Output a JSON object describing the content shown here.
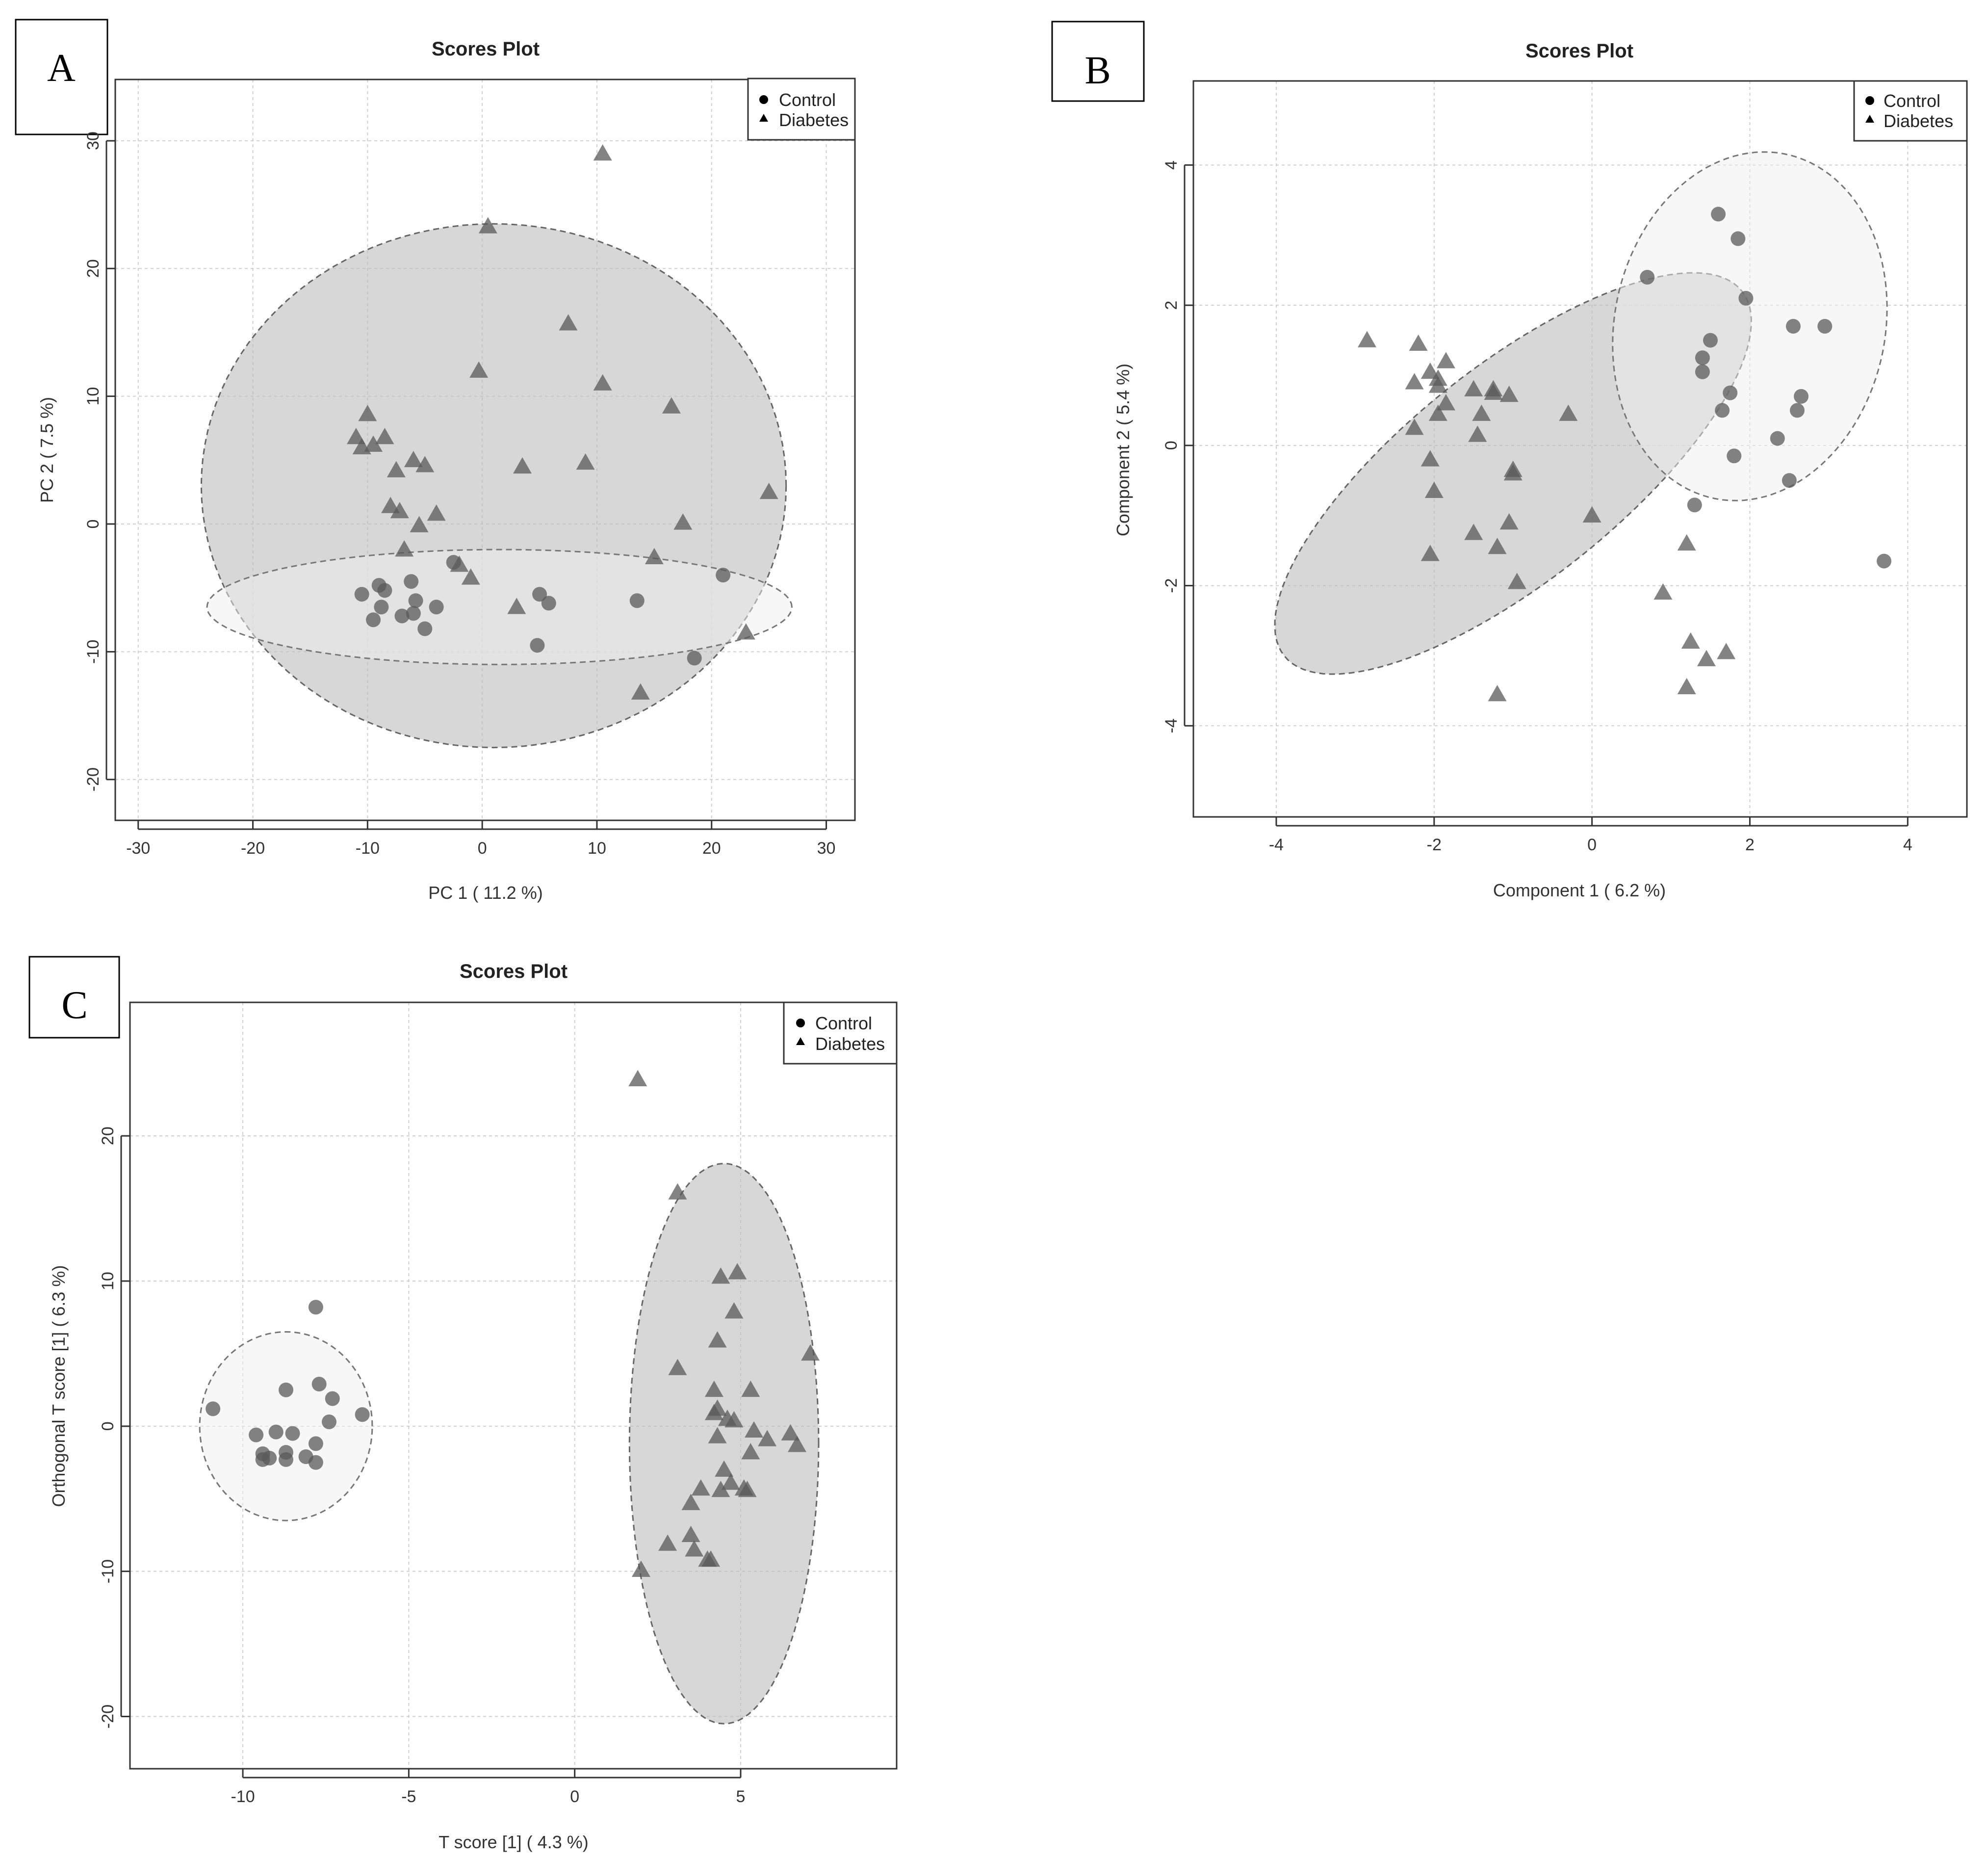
{
  "colors": {
    "point": "#5a5a5a",
    "ellipse_dark": "#bdbdbd",
    "ellipse_light": "#efefef"
  },
  "chart_data": [
    {
      "panel": "A",
      "type": "scatter",
      "title": "Scores Plot",
      "xlabel": "PC 1 ( 11.2 %)",
      "ylabel": "PC 2 ( 7.5 %)",
      "xlim": [
        -32,
        32.5
      ],
      "ylim": [
        -23.2,
        34.8
      ],
      "xticks": [
        -30,
        -20,
        -10,
        0,
        10,
        20,
        30
      ],
      "yticks": [
        -20,
        -10,
        0,
        10,
        20,
        30
      ],
      "xtick_labels": [
        "-30",
        "-20",
        "-10",
        "0",
        "10",
        "20",
        "30"
      ],
      "ytick_labels": [
        "-20",
        "-10",
        "0",
        "10",
        "20",
        "30"
      ],
      "grid": true,
      "legend": {
        "position": "top-right",
        "entries": [
          {
            "label": "Control",
            "marker": "circle"
          },
          {
            "label": "Diabetes",
            "marker": "triangle"
          }
        ]
      },
      "ellipses": [
        {
          "group": "Diabetes",
          "cx": 1,
          "cy": 3,
          "rx": 25.5,
          "ry": 20.5,
          "angle": 0,
          "style": "dark"
        },
        {
          "group": "Control",
          "cx": 1.5,
          "cy": -6.5,
          "rx": 25.5,
          "ry": 4.5,
          "angle": 0,
          "style": "light"
        }
      ],
      "series": [
        {
          "name": "Control",
          "marker": "circle",
          "points": [
            [
              -10.5,
              -5.5
            ],
            [
              -9,
              -4.8
            ],
            [
              -8.5,
              -5.2
            ],
            [
              -9.5,
              -7.5
            ],
            [
              -8.8,
              -6.5
            ],
            [
              -7,
              -7.2
            ],
            [
              -6,
              -7
            ],
            [
              -5,
              -8.2
            ],
            [
              -4,
              -6.5
            ],
            [
              -5.8,
              -6
            ],
            [
              -6.2,
              -4.5
            ],
            [
              -2.5,
              -3
            ],
            [
              5,
              -5.5
            ],
            [
              5.8,
              -6.2
            ],
            [
              4.8,
              -9.5
            ],
            [
              13.5,
              -6
            ],
            [
              21,
              -4
            ],
            [
              18.5,
              -10.5
            ]
          ]
        },
        {
          "name": "Diabetes",
          "marker": "triangle",
          "points": [
            [
              10.5,
              29
            ],
            [
              0.5,
              23.3
            ],
            [
              7.5,
              15.7
            ],
            [
              -0.3,
              12
            ],
            [
              10.5,
              11
            ],
            [
              16.5,
              9.2
            ],
            [
              -10,
              8.6
            ],
            [
              -11,
              6.8
            ],
            [
              -10.5,
              6
            ],
            [
              -9.5,
              6.2
            ],
            [
              -8.5,
              6.8
            ],
            [
              -6,
              5
            ],
            [
              -5,
              4.6
            ],
            [
              -7.5,
              4.2
            ],
            [
              3.5,
              4.5
            ],
            [
              9,
              4.8
            ],
            [
              25,
              2.5
            ],
            [
              -8,
              1.4
            ],
            [
              -7.2,
              1
            ],
            [
              -4,
              0.8
            ],
            [
              -5.5,
              -0.1
            ],
            [
              17.5,
              0.1
            ],
            [
              -6.8,
              -2
            ],
            [
              -2,
              -3.2
            ],
            [
              -1,
              -4.2
            ],
            [
              15,
              -2.6
            ],
            [
              3,
              -6.5
            ],
            [
              23,
              -8.5
            ],
            [
              13.8,
              -13.2
            ]
          ]
        }
      ]
    },
    {
      "panel": "B",
      "type": "scatter",
      "title": "Scores Plot",
      "xlabel": "Component 1 ( 6.2 %)",
      "ylabel": "Component 2 ( 5.4 %)",
      "xlim": [
        -5.05,
        4.75
      ],
      "ylim": [
        -5.3,
        5.2
      ],
      "xticks": [
        -4,
        -2,
        0,
        2,
        4
      ],
      "yticks": [
        -4,
        -2,
        0,
        2,
        4
      ],
      "xtick_labels": [
        "-4",
        "-2",
        "0",
        "2",
        "4"
      ],
      "ytick_labels": [
        "-4",
        "-2",
        "0",
        "2",
        "4"
      ],
      "grid": true,
      "legend": {
        "position": "top-right",
        "entries": [
          {
            "label": "Control",
            "marker": "circle"
          },
          {
            "label": "Diabetes",
            "marker": "triangle"
          }
        ]
      },
      "ellipses": [
        {
          "group": "Diabetes",
          "cx": -1,
          "cy": -0.4,
          "rx": 3.9,
          "ry": 1.45,
          "angle": 43,
          "style": "dark"
        },
        {
          "group": "Control",
          "cx": 2,
          "cy": 1.7,
          "rx": 2.5,
          "ry": 1.72,
          "angle": 82,
          "style": "light"
        }
      ],
      "series": [
        {
          "name": "Control",
          "marker": "circle",
          "points": [
            [
              1.6,
              3.3
            ],
            [
              1.85,
              2.95
            ],
            [
              0.7,
              2.4
            ],
            [
              1.95,
              2.1
            ],
            [
              1.5,
              1.5
            ],
            [
              2.55,
              1.7
            ],
            [
              2.95,
              1.7
            ],
            [
              1.4,
              1.25
            ],
            [
              1.4,
              1.05
            ],
            [
              1.75,
              0.75
            ],
            [
              2.65,
              0.7
            ],
            [
              1.65,
              0.5
            ],
            [
              2.6,
              0.5
            ],
            [
              2.35,
              0.1
            ],
            [
              1.8,
              -0.15
            ],
            [
              2.5,
              -0.5
            ],
            [
              1.3,
              -0.85
            ],
            [
              3.7,
              -1.65
            ]
          ]
        },
        {
          "name": "Diabetes",
          "marker": "triangle",
          "points": [
            [
              -2.85,
              1.5
            ],
            [
              -2.2,
              1.45
            ],
            [
              -1.85,
              1.2
            ],
            [
              -2.05,
              1.05
            ],
            [
              -2.25,
              0.9
            ],
            [
              -1.95,
              0.95
            ],
            [
              -1.95,
              0.85
            ],
            [
              -1.5,
              0.8
            ],
            [
              -1.25,
              0.8
            ],
            [
              -1.25,
              0.75
            ],
            [
              -1.05,
              0.72
            ],
            [
              -1.85,
              0.6
            ],
            [
              -1.4,
              0.45
            ],
            [
              -1.95,
              0.45
            ],
            [
              -0.3,
              0.45
            ],
            [
              -2.25,
              0.25
            ],
            [
              -1.45,
              0.15
            ],
            [
              -2.05,
              -0.2
            ],
            [
              -1.0,
              -0.35
            ],
            [
              -1.0,
              -0.4
            ],
            [
              -2.0,
              -0.65
            ],
            [
              0,
              -1.0
            ],
            [
              -1.05,
              -1.1
            ],
            [
              -1.5,
              -1.25
            ],
            [
              -1.2,
              -1.45
            ],
            [
              -2.05,
              -1.55
            ],
            [
              1.2,
              -1.4
            ],
            [
              -0.95,
              -1.95
            ],
            [
              0.9,
              -2.1
            ],
            [
              1.25,
              -2.8
            ],
            [
              1.7,
              -2.95
            ],
            [
              1.45,
              -3.05
            ],
            [
              1.2,
              -3.45
            ],
            [
              -1.2,
              -3.55
            ]
          ]
        }
      ]
    },
    {
      "panel": "C",
      "type": "scatter",
      "title": "Scores Plot",
      "xlabel": "T score [1] ( 4.3 %)",
      "ylabel": "Orthogonal T score [1] ( 6.3 %)",
      "xlim": [
        -13.4,
        9.7
      ],
      "ylim": [
        -23.6,
        29.2
      ],
      "xticks": [
        -10,
        -5,
        0,
        5
      ],
      "yticks": [
        -20,
        -10,
        0,
        10,
        20
      ],
      "xtick_labels": [
        "-10",
        "-5",
        "0",
        "5"
      ],
      "ytick_labels": [
        "-20",
        "-10",
        "0",
        "10",
        "20"
      ],
      "grid": true,
      "legend": {
        "position": "top-right",
        "entries": [
          {
            "label": "Control",
            "marker": "circle"
          },
          {
            "label": "Diabetes",
            "marker": "triangle"
          }
        ]
      },
      "ellipses": [
        {
          "group": "Control",
          "cx": -8.7,
          "cy": 0,
          "rx": 2.6,
          "ry": 6.5,
          "angle": 0,
          "style": "light"
        },
        {
          "group": "Diabetes",
          "cx": 4.5,
          "cy": -1.2,
          "rx": 2.85,
          "ry": 19.3,
          "angle": 0,
          "style": "dark"
        }
      ],
      "series": [
        {
          "name": "Control",
          "marker": "circle",
          "points": [
            [
              -7.8,
              8.2
            ],
            [
              -10.9,
              1.2
            ],
            [
              -8.7,
              2.5
            ],
            [
              -7.7,
              2.9
            ],
            [
              -7.3,
              1.9
            ],
            [
              -6.4,
              0.8
            ],
            [
              -7.4,
              0.3
            ],
            [
              -9.6,
              -0.6
            ],
            [
              -9.0,
              -0.4
            ],
            [
              -8.5,
              -0.5
            ],
            [
              -7.8,
              -1.2
            ],
            [
              -9.4,
              -1.9
            ],
            [
              -8.7,
              -1.8
            ],
            [
              -9.2,
              -2.2
            ],
            [
              -8.7,
              -2.3
            ],
            [
              -8.1,
              -2.1
            ],
            [
              -7.8,
              -2.5
            ],
            [
              -9.4,
              -2.3
            ]
          ]
        },
        {
          "name": "Diabetes",
          "marker": "triangle",
          "points": [
            [
              1.9,
              23.9
            ],
            [
              3.1,
              16.1
            ],
            [
              4.4,
              10.3
            ],
            [
              4.9,
              10.6
            ],
            [
              4.8,
              7.9
            ],
            [
              4.3,
              5.9
            ],
            [
              7.1,
              5
            ],
            [
              3.1,
              4
            ],
            [
              4.2,
              2.5
            ],
            [
              5.3,
              2.5
            ],
            [
              4.2,
              0.9
            ],
            [
              4.3,
              1.2
            ],
            [
              4.6,
              0.5
            ],
            [
              4.8,
              0.4
            ],
            [
              5.4,
              -0.3
            ],
            [
              5.8,
              -0.9
            ],
            [
              6.5,
              -0.5
            ],
            [
              6.7,
              -1.3
            ],
            [
              4.3,
              -0.7
            ],
            [
              5.3,
              -1.8
            ],
            [
              4.5,
              -3.0
            ],
            [
              4.7,
              -3.9
            ],
            [
              5.1,
              -4.3
            ],
            [
              5.2,
              -4.4
            ],
            [
              3.8,
              -4.3
            ],
            [
              4.4,
              -4.4
            ],
            [
              3.5,
              -5.3
            ],
            [
              3.5,
              -7.5
            ],
            [
              2.8,
              -8.1
            ],
            [
              3.6,
              -8.5
            ],
            [
              4.1,
              -9.2
            ],
            [
              4.0,
              -9.2
            ],
            [
              2.0,
              -9.9
            ]
          ]
        }
      ]
    }
  ]
}
